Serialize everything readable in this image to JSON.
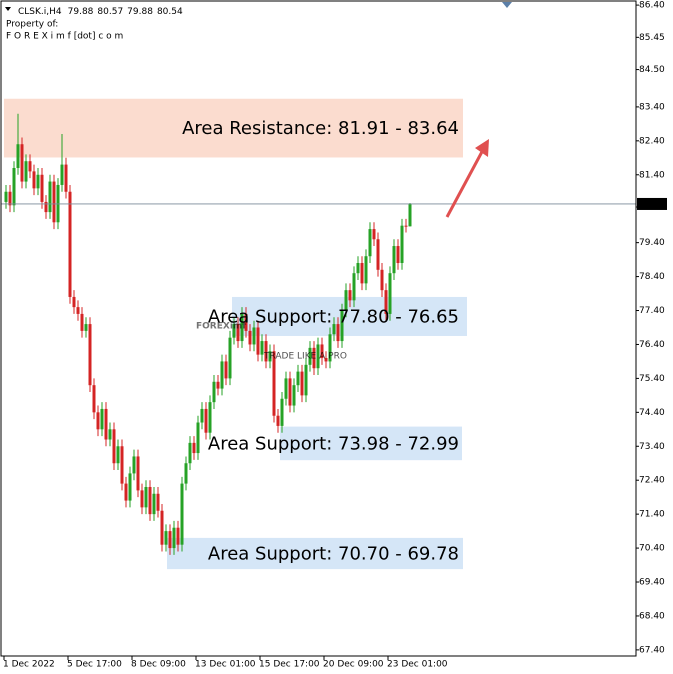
{
  "chart_data": {
    "type": "candlestick",
    "symbol": "CLSK.i,H4",
    "owner_note": "Property of:",
    "owner_site": "F O R E X i m f [dot] c o m",
    "watermark": "FOREXimf",
    "watermark_tagline": "TRADE LIKE A PRO",
    "categories": [
      "1 Dec 2022",
      null,
      null,
      null,
      null,
      null,
      null,
      null,
      null,
      null,
      null,
      null,
      null,
      null,
      null,
      null,
      "5 Dec 17:00",
      null,
      null,
      null,
      null,
      null,
      null,
      null,
      null,
      null,
      null,
      null,
      null,
      null,
      null,
      null,
      "8 Dec 09:00",
      null,
      null,
      null,
      null,
      null,
      null,
      null,
      null,
      null,
      null,
      null,
      null,
      null,
      null,
      null,
      "13 Dec 01:00",
      null,
      null,
      null,
      null,
      null,
      null,
      null,
      null,
      null,
      null,
      null,
      null,
      null,
      null,
      null,
      "15 Dec 17:00",
      null,
      null,
      null,
      null,
      null,
      null,
      null,
      null,
      null,
      null,
      null,
      null,
      null,
      null,
      null,
      "20 Dec 09:00",
      null,
      null,
      null,
      null,
      null,
      null,
      null,
      null,
      null,
      null,
      null,
      null,
      null,
      null,
      null,
      "23 Dec 01:00",
      null,
      null,
      null,
      null,
      null
    ],
    "open": [
      80.6,
      80.9,
      80.5,
      81.6,
      82.3,
      81.2,
      81.8,
      81.5,
      81.0,
      81.4,
      80.6,
      80.3,
      81.2,
      80.0,
      81.1,
      81.7,
      80.9,
      77.8,
      77.5,
      77.3,
      76.8,
      77.0,
      75.2,
      74.4,
      73.9,
      74.5,
      73.6,
      73.9,
      72.9,
      73.4,
      72.3,
      71.8,
      72.6,
      73.1,
      72.1,
      71.6,
      72.2,
      71.4,
      72.0,
      71.5,
      70.5,
      70.9,
      70.4,
      71.0,
      70.5,
      72.3,
      72.9,
      73.5,
      73.2,
      74.1,
      74.5,
      73.8,
      74.7,
      75.3,
      75.1,
      75.9,
      75.4,
      76.6,
      77.0,
      76.5,
      77.3,
      76.8,
      76.4,
      76.9,
      76.1,
      76.5,
      75.9,
      76.2,
      74.3,
      74.0,
      74.8,
      75.4,
      74.6,
      75.2,
      75.6,
      74.9,
      75.8,
      76.3,
      75.7,
      76.4,
      76.0,
      75.9,
      76.7,
      77.0,
      76.5,
      77.4,
      78.0,
      77.7,
      78.5,
      78.8,
      78.2,
      79.0,
      79.8,
      79.5,
      78.6,
      78.0,
      77.3,
      78.5,
      79.3,
      78.8,
      79.9,
      79.88
    ],
    "high": [
      81.1,
      81.1,
      81.8,
      83.2,
      82.5,
      82.0,
      82.0,
      81.7,
      81.6,
      81.6,
      80.8,
      81.4,
      81.4,
      81.3,
      82.6,
      81.9,
      81.1,
      78.0,
      77.7,
      77.5,
      77.2,
      77.2,
      75.4,
      74.6,
      74.7,
      74.7,
      74.1,
      74.1,
      73.6,
      73.6,
      72.5,
      72.8,
      73.3,
      73.3,
      72.3,
      72.4,
      72.4,
      72.2,
      72.2,
      71.7,
      71.1,
      71.1,
      71.2,
      71.2,
      72.5,
      73.1,
      73.7,
      73.7,
      74.3,
      74.7,
      74.7,
      74.9,
      75.5,
      75.5,
      76.1,
      76.1,
      76.8,
      77.2,
      77.2,
      77.5,
      77.5,
      77.0,
      77.1,
      77.1,
      76.7,
      76.7,
      76.4,
      76.4,
      74.5,
      75.0,
      75.6,
      75.6,
      75.4,
      75.8,
      75.8,
      76.0,
      76.5,
      76.5,
      76.6,
      76.6,
      76.2,
      76.9,
      77.2,
      77.2,
      77.6,
      78.2,
      78.2,
      78.7,
      79.0,
      79.0,
      79.2,
      80.0,
      80.0,
      79.7,
      78.8,
      78.2,
      78.7,
      79.5,
      79.5,
      80.1,
      80.1,
      80.57
    ],
    "low": [
      80.4,
      80.3,
      80.3,
      81.4,
      81.0,
      81.0,
      81.3,
      80.8,
      80.8,
      80.4,
      80.1,
      80.1,
      79.8,
      79.8,
      80.9,
      80.7,
      77.6,
      77.3,
      77.1,
      76.6,
      76.6,
      75.0,
      74.2,
      73.7,
      73.7,
      73.4,
      73.4,
      72.7,
      72.7,
      72.1,
      71.6,
      71.6,
      72.4,
      71.9,
      71.4,
      71.4,
      71.2,
      71.2,
      71.3,
      70.3,
      70.3,
      70.2,
      70.2,
      70.3,
      70.3,
      72.1,
      72.7,
      73.0,
      73.0,
      73.9,
      73.6,
      73.6,
      74.5,
      74.9,
      74.9,
      75.2,
      75.2,
      76.4,
      76.3,
      76.3,
      76.6,
      76.2,
      76.2,
      75.9,
      75.9,
      75.7,
      75.7,
      74.1,
      73.8,
      73.8,
      74.6,
      74.4,
      74.4,
      75.0,
      74.7,
      74.7,
      75.6,
      75.5,
      75.5,
      75.8,
      75.7,
      75.7,
      76.5,
      76.3,
      76.3,
      77.2,
      77.5,
      77.5,
      78.3,
      78.0,
      78.0,
      78.8,
      79.3,
      78.4,
      77.8,
      77.1,
      77.1,
      78.3,
      78.6,
      78.6,
      79.7,
      79.88
    ],
    "close": [
      80.9,
      80.5,
      81.6,
      82.3,
      81.2,
      81.8,
      81.5,
      81.0,
      81.4,
      80.6,
      80.3,
      81.2,
      80.0,
      81.1,
      81.7,
      80.9,
      77.8,
      77.5,
      77.3,
      76.8,
      77.0,
      75.2,
      74.4,
      73.9,
      74.5,
      73.6,
      73.9,
      72.9,
      73.4,
      72.3,
      71.8,
      72.6,
      73.1,
      72.1,
      71.6,
      72.2,
      71.4,
      72.0,
      71.5,
      70.5,
      70.9,
      70.4,
      71.0,
      70.5,
      72.3,
      72.9,
      73.5,
      73.2,
      74.1,
      74.5,
      73.8,
      74.7,
      75.3,
      75.1,
      75.9,
      75.4,
      76.6,
      77.0,
      76.5,
      77.3,
      76.8,
      76.4,
      76.9,
      76.1,
      76.5,
      75.9,
      76.2,
      74.3,
      74.0,
      74.8,
      75.4,
      74.6,
      75.2,
      75.6,
      74.9,
      75.8,
      76.3,
      75.7,
      76.4,
      76.0,
      75.9,
      76.7,
      77.0,
      76.5,
      77.4,
      78.0,
      77.7,
      78.5,
      78.8,
      78.2,
      79.0,
      79.8,
      79.5,
      78.6,
      78.0,
      77.3,
      78.5,
      79.3,
      78.8,
      79.9,
      79.88,
      80.54
    ],
    "up_color": "#26a226",
    "down_color": "#d42424",
    "ylim": [
      67.22,
      86.55
    ],
    "yticks": [
      {
        "value": 86.4,
        "label": "86.40"
      },
      {
        "value": 85.45,
        "label": "85.45"
      },
      {
        "value": 84.5,
        "label": "84.50"
      },
      {
        "value": 83.4,
        "label": "83.40"
      },
      {
        "value": 82.4,
        "label": "82.40"
      },
      {
        "value": 81.4,
        "label": "81.40"
      },
      {
        "value": 80.45,
        "label": "80.45"
      },
      {
        "value": 79.4,
        "label": "79.40"
      },
      {
        "value": 78.4,
        "label": "78.40"
      },
      {
        "value": 77.4,
        "label": "77.40"
      },
      {
        "value": 76.4,
        "label": "76.40"
      },
      {
        "value": 75.4,
        "label": "75.40"
      },
      {
        "value": 74.4,
        "label": "74.40"
      },
      {
        "value": 73.4,
        "label": "73.40"
      },
      {
        "value": 72.4,
        "label": "72.40"
      },
      {
        "value": 71.4,
        "label": "71.40"
      },
      {
        "value": 70.4,
        "label": "70.40"
      },
      {
        "value": 69.4,
        "label": "69.40"
      },
      {
        "value": 68.4,
        "label": "68.40"
      },
      {
        "value": 67.4,
        "label": "67.40"
      }
    ],
    "grid": false,
    "zones": [
      {
        "label": "Area Resistance: 81.91 - 83.64",
        "low": 81.91,
        "high": 83.64,
        "color": "#fbdccf"
      },
      {
        "label": "Area Support: 77.80 - 76.65",
        "low": 76.65,
        "high": 77.8,
        "color": "#d5e6f7"
      },
      {
        "label": "Area Support: 73.98 - 72.99",
        "low": 72.99,
        "high": 73.98,
        "color": "#d5e6f7"
      },
      {
        "label": "Area Support: 70.70 - 69.78",
        "low": 69.78,
        "high": 70.7,
        "color": "#d5e6f7"
      }
    ]
  }
}
